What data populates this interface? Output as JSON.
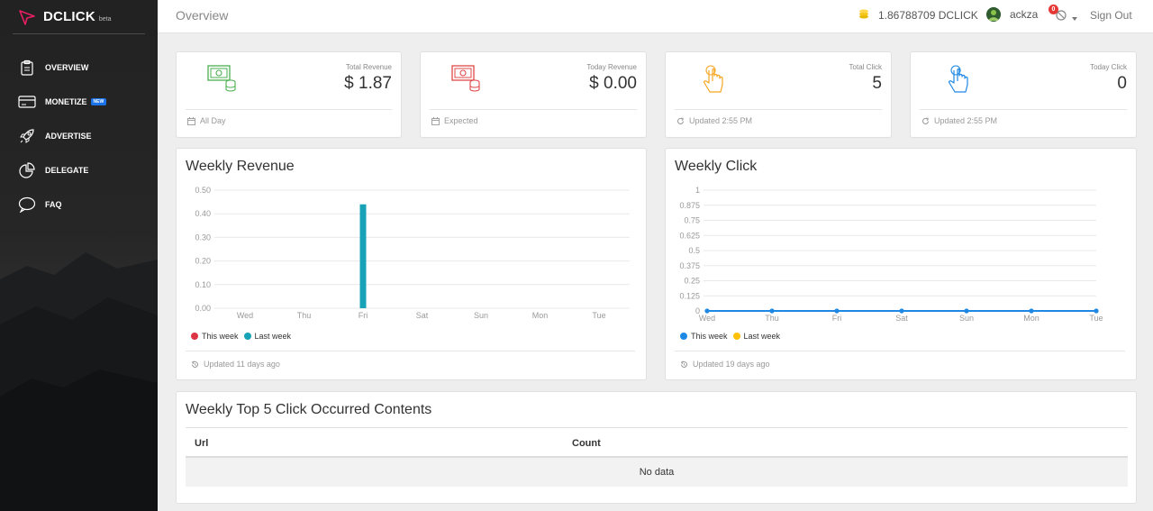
{
  "brand": {
    "name": "DCLICK",
    "tag": "beta"
  },
  "sidebar": {
    "items": [
      {
        "label": "OVERVIEW",
        "icon": "clipboard-icon"
      },
      {
        "label": "MONETIZE",
        "icon": "credit-card-icon",
        "badge": "NEW"
      },
      {
        "label": "ADVERTISE",
        "icon": "rocket-icon"
      },
      {
        "label": "DELEGATE",
        "icon": "pie-chart-icon"
      },
      {
        "label": "FAQ",
        "icon": "chat-bubble-icon"
      }
    ]
  },
  "header": {
    "title": "Overview",
    "balance": "1.86788709 DCLICK",
    "username": "ackza",
    "notification_count": "0",
    "signout_label": "Sign Out"
  },
  "stats": [
    {
      "label": "Total Revenue",
      "value": "$ 1.87",
      "footer": "All Day",
      "icon": "money-stack-icon",
      "color": "#4caf50",
      "foot_icon": "calendar-icon"
    },
    {
      "label": "Today Revenue",
      "value": "$ 0.00",
      "footer": "Expected",
      "icon": "money-stack-icon",
      "color": "#e04848",
      "foot_icon": "calendar-icon"
    },
    {
      "label": "Total Click",
      "value": "5",
      "footer": "Updated 2:55 PM",
      "icon": "pointer-hand-icon",
      "color": "#f5a623",
      "foot_icon": "refresh-icon"
    },
    {
      "label": "Today Click",
      "value": "0",
      "footer": "Updated 2:55 PM",
      "icon": "pointer-hand-icon",
      "color": "#1e88e5",
      "foot_icon": "refresh-icon"
    }
  ],
  "revenue_chart": {
    "title": "Weekly Revenue",
    "footer": "Updated 11 days ago",
    "legend": [
      {
        "name": "This week",
        "color": "#dc3545"
      },
      {
        "name": "Last week",
        "color": "#17a2b8"
      }
    ]
  },
  "click_chart": {
    "title": "Weekly Click",
    "footer": "Updated 19 days ago",
    "legend": [
      {
        "name": "This week",
        "color": "#1e88e5"
      },
      {
        "name": "Last week",
        "color": "#ffc107"
      }
    ]
  },
  "chart_data": [
    {
      "type": "bar",
      "title": "Weekly Revenue",
      "categories": [
        "Wed",
        "Thu",
        "Fri",
        "Sat",
        "Sun",
        "Mon",
        "Tue"
      ],
      "series": [
        {
          "name": "This week",
          "values": [
            0,
            0,
            0,
            0,
            0,
            0,
            0
          ]
        },
        {
          "name": "Last week",
          "values": [
            0,
            0,
            0.44,
            0,
            0,
            0,
            0
          ]
        }
      ],
      "ylim": [
        0,
        0.5
      ],
      "yticks": [
        "0.50",
        "0.40",
        "0.30",
        "0.20",
        "0.10",
        "0.00"
      ],
      "grid": true,
      "legend_position": "bottom-left"
    },
    {
      "type": "line",
      "title": "Weekly Click",
      "categories": [
        "Wed",
        "Thu",
        "Fri",
        "Sat",
        "Sun",
        "Mon",
        "Tue"
      ],
      "series": [
        {
          "name": "This week",
          "values": [
            0,
            0,
            0,
            0,
            0,
            0,
            0
          ]
        },
        {
          "name": "Last week",
          "values": [
            0,
            0,
            0,
            0,
            0,
            0,
            0
          ]
        }
      ],
      "ylim": [
        0,
        1
      ],
      "yticks": [
        "1",
        "0.875",
        "0.75",
        "0.625",
        "0.5",
        "0.375",
        "0.25",
        "0.125",
        "0"
      ],
      "grid": true,
      "legend_position": "bottom-left"
    }
  ],
  "top_contents": {
    "title": "Weekly Top 5 Click Occurred Contents",
    "columns": [
      "Url",
      "Count"
    ],
    "empty_text": "No data"
  }
}
